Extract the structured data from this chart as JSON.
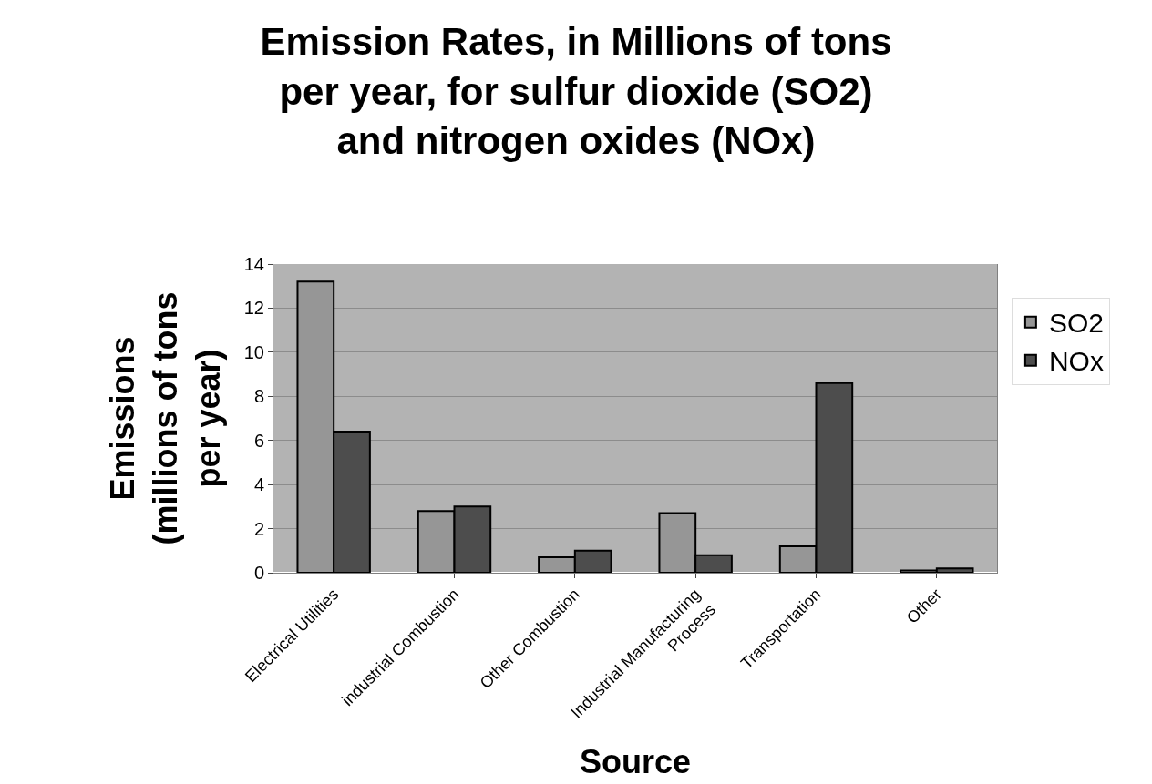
{
  "chart_data": {
    "type": "bar",
    "title": "Emission Rates, in Millions of tons per year, for sulfur dioxide (SO2) and nitrogen oxides (NOx)",
    "xlabel": "Source",
    "ylabel": "Emissions (millions of tons per year)",
    "categories": [
      "Electrical Utilities",
      "industrial Combustion",
      "Other Combustion",
      "Industrial Manufacturing Process",
      "Transportation",
      "Other"
    ],
    "series": [
      {
        "name": "SO2",
        "color": "#969696",
        "values": [
          13.2,
          2.8,
          0.7,
          2.7,
          1.2,
          0.1
        ]
      },
      {
        "name": "NOx",
        "color": "#4d4d4d",
        "values": [
          6.4,
          3.0,
          1.0,
          0.8,
          8.6,
          0.2
        ]
      }
    ],
    "ylim": [
      0,
      14
    ],
    "yticks": [
      0,
      2,
      4,
      6,
      8,
      10,
      12,
      14
    ],
    "grid": "y",
    "legend": "right"
  }
}
